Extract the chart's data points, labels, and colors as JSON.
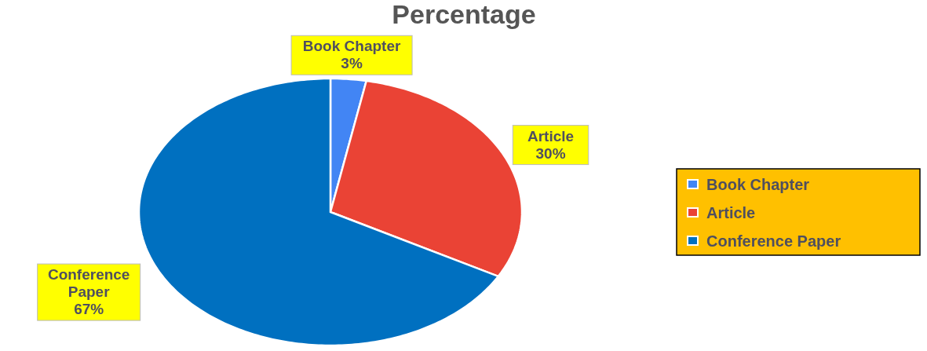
{
  "chart_data": {
    "type": "pie",
    "title": "Percentage",
    "categories": [
      "Book Chapter",
      "Article",
      "Conference Paper"
    ],
    "values": [
      3,
      30,
      67
    ],
    "colors": [
      "#4285f4",
      "#ea4335",
      "#0070c0"
    ],
    "value_labels": [
      "3%",
      "30%",
      "67%"
    ],
    "legend": "right"
  }
}
